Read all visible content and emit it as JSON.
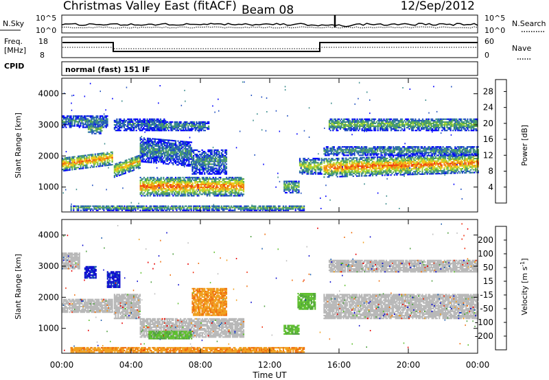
{
  "header": {
    "title": "Christmas Valley East (fitACF)",
    "beam": "Beam 08",
    "date": "12/Sep/2012"
  },
  "noise_panel": {
    "left_label": "N.Sky",
    "right_label": "N.Search",
    "left_ticks": [
      "10^5",
      "10^0"
    ],
    "right_ticks": [
      "10^5",
      "10^0"
    ]
  },
  "freq_panel": {
    "left_label_1": "Freq.",
    "left_label_2": "[MHz]",
    "right_label": "Nave",
    "left_ticks": [
      "18",
      "8"
    ],
    "right_ticks": [
      "60",
      "0"
    ]
  },
  "cpid": {
    "label": "CPID",
    "value": "normal (fast) 151 IF"
  },
  "colors": {
    "power": [
      "#0000ff",
      "#2050c0",
      "#3a8c8c",
      "#5aaa50",
      "#a8d838",
      "#f2c81a",
      "#f08a10",
      "#f04010",
      "#e81010"
    ],
    "velocity": [
      "#1010d0",
      "#2060b0",
      "#50a040",
      "#60c030",
      "#c0c0c0",
      "#f0a020",
      "#f07010",
      "#f03010",
      "#e80000"
    ],
    "ground_scatter": "#b8b8b8"
  },
  "chart_data": [
    {
      "type": "heatmap",
      "name": "power",
      "ylabel": "Slant Range [km]",
      "xlabel": "Time UT",
      "x_ticks": [
        "00:00",
        "04:00",
        "08:00",
        "12:00",
        "16:00",
        "20:00",
        "00:00"
      ],
      "xlim": [
        0,
        24
      ],
      "y_ticks": [
        "1000",
        "2000",
        "3000",
        "4000"
      ],
      "ylim": [
        200,
        4500
      ],
      "colorbar_label": "Power [dB]",
      "colorbar_ticks": [
        "4",
        "8",
        "12",
        "16",
        "20",
        "24",
        "28"
      ],
      "colorbar_range": [
        0,
        30
      ],
      "bands": [
        {
          "t0": 0.0,
          "t1": 2.9,
          "r0": 1500,
          "r1": 1950,
          "level": 0.75,
          "slope": 200
        },
        {
          "t0": 0.0,
          "t1": 2.6,
          "r0": 2900,
          "r1": 3300,
          "level": 0.3,
          "slope": 0
        },
        {
          "t0": 1.5,
          "t1": 2.3,
          "r0": 2700,
          "r1": 3000,
          "level": 0.45,
          "slope": 0
        },
        {
          "t0": 3.0,
          "t1": 4.5,
          "r0": 1300,
          "r1": 1750,
          "level": 0.65,
          "slope": 300
        },
        {
          "t0": 3.0,
          "t1": 6.0,
          "r0": 2800,
          "r1": 3200,
          "level": 0.25,
          "slope": 0
        },
        {
          "t0": 5.5,
          "t1": 8.5,
          "r0": 2800,
          "r1": 3100,
          "level": 0.35,
          "slope": 0
        },
        {
          "t0": 4.5,
          "t1": 7.5,
          "r0": 1800,
          "r1": 2600,
          "level": 0.3,
          "slope": -150
        },
        {
          "t0": 4.5,
          "t1": 10.5,
          "r0": 700,
          "r1": 1300,
          "level": 0.8,
          "slope": 0
        },
        {
          "t0": 7.5,
          "t1": 9.5,
          "r0": 1400,
          "r1": 2200,
          "level": 0.3,
          "slope": 0
        },
        {
          "t0": 12.8,
          "t1": 13.7,
          "r0": 800,
          "r1": 1200,
          "level": 0.45,
          "slope": 0
        },
        {
          "t0": 13.7,
          "t1": 15.0,
          "r0": 1400,
          "r1": 1900,
          "level": 0.55,
          "slope": 0
        },
        {
          "t0": 15.1,
          "t1": 24.0,
          "r0": 1300,
          "r1": 1900,
          "level": 0.8,
          "slope": 150
        },
        {
          "t0": 15.1,
          "t1": 24.0,
          "r0": 2000,
          "r1": 2300,
          "level": 0.35,
          "slope": 0
        },
        {
          "t0": 15.4,
          "t1": 24.0,
          "r0": 2800,
          "r1": 3200,
          "level": 0.45,
          "slope": 0
        },
        {
          "t0": 0.5,
          "t1": 14.0,
          "r0": 230,
          "r1": 400,
          "level": 0.4,
          "slope": 0
        }
      ]
    },
    {
      "type": "heatmap",
      "name": "velocity",
      "ylabel": "Slant Range [km]",
      "xlabel": "Time UT",
      "x_ticks": [
        "00:00",
        "04:00",
        "08:00",
        "12:00",
        "16:00",
        "20:00",
        "00:00"
      ],
      "xlim": [
        0,
        24
      ],
      "y_ticks": [
        "1000",
        "2000",
        "3000",
        "4000"
      ],
      "ylim": [
        200,
        4500
      ],
      "colorbar_label": "Velocity [m s^-1]",
      "colorbar_ticks": [
        "200",
        "100",
        "50",
        "15",
        "-15",
        "-50",
        "-100",
        "-200"
      ],
      "bands": [
        {
          "t0": 0.0,
          "t1": 2.9,
          "r0": 1500,
          "r1": 1950,
          "vel": "ground"
        },
        {
          "t0": 0.0,
          "t1": 1.0,
          "r0": 2900,
          "r1": 3400,
          "vel": "ground"
        },
        {
          "t0": 1.3,
          "t1": 2.0,
          "r0": 2600,
          "r1": 3000,
          "vel": "positive_high"
        },
        {
          "t0": 2.6,
          "t1": 3.3,
          "r0": 2300,
          "r1": 2800,
          "vel": "positive_high"
        },
        {
          "t0": 3.0,
          "t1": 4.5,
          "r0": 1300,
          "r1": 2100,
          "vel": "ground"
        },
        {
          "t0": 4.5,
          "t1": 10.5,
          "r0": 700,
          "r1": 1300,
          "vel": "ground"
        },
        {
          "t0": 5.0,
          "t1": 7.5,
          "r0": 650,
          "r1": 900,
          "vel": "positive_low"
        },
        {
          "t0": 7.5,
          "t1": 9.5,
          "r0": 1400,
          "r1": 2300,
          "vel": "negative_low"
        },
        {
          "t0": 12.8,
          "t1": 13.7,
          "r0": 800,
          "r1": 1100,
          "vel": "positive_low"
        },
        {
          "t0": 13.6,
          "t1": 14.6,
          "r0": 1600,
          "r1": 2100,
          "vel": "positive_low"
        },
        {
          "t0": 15.1,
          "t1": 24.0,
          "r0": 1300,
          "r1": 2100,
          "vel": "ground"
        },
        {
          "t0": 15.4,
          "t1": 24.0,
          "r0": 2800,
          "r1": 3200,
          "vel": "ground"
        },
        {
          "t0": 0.5,
          "t1": 14.0,
          "r0": 220,
          "r1": 380,
          "vel": "negative_low"
        }
      ]
    }
  ]
}
